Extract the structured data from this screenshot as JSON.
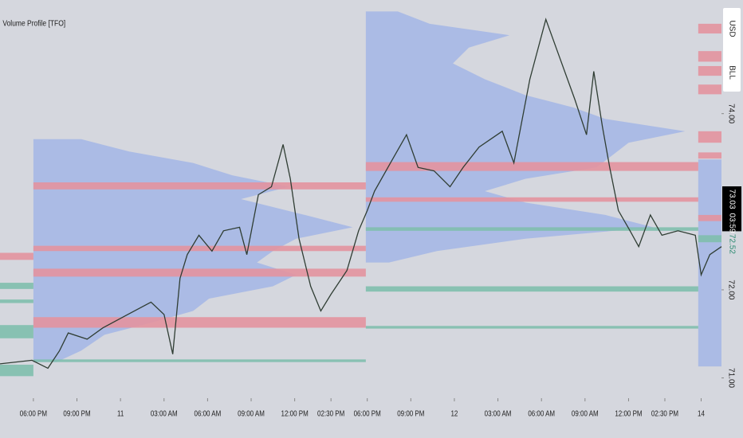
{
  "chart_data": {
    "type": "line",
    "title": "Volume Profile [TFO]",
    "x": [
      -2.3,
      -0.1,
      1.0,
      1.8,
      2.4,
      3.7,
      4.8,
      6.5,
      8.1,
      9.0,
      9.6,
      10.1,
      10.6,
      11.4,
      12.3,
      13.1,
      14.2,
      14.7,
      15.5,
      16.4,
      17.2,
      17.7,
      18.3,
      19.1,
      19.8,
      20.5,
      21.6,
      22.4,
      23.0,
      23.5,
      24.6,
      25.7,
      26.5,
      27.6,
      28.7,
      29.6,
      30.7,
      32.3,
      33.1,
      34.2,
      35.3,
      36.2,
      37.3,
      38.1,
      38.6,
      39.2,
      39.7,
      40.3,
      41.1,
      41.7,
      42.5,
      43.3,
      44.4,
      45.6,
      46.0,
      46.6,
      47.4
    ],
    "series": [
      {
        "color": "#2f3d33",
        "values": [
          71.16,
          71.2,
          71.11,
          71.31,
          71.51,
          71.44,
          71.57,
          71.72,
          71.86,
          71.72,
          71.27,
          72.13,
          72.4,
          72.62,
          72.44,
          72.67,
          72.71,
          72.4,
          73.08,
          73.17,
          73.65,
          73.26,
          72.58,
          72.04,
          71.76,
          71.95,
          72.22,
          72.67,
          72.9,
          73.12,
          73.44,
          73.76,
          73.39,
          73.35,
          73.17,
          73.39,
          73.62,
          73.8,
          73.44,
          74.39,
          75.07,
          74.66,
          74.16,
          73.76,
          74.48,
          73.85,
          73.39,
          72.9,
          72.67,
          72.49,
          72.85,
          72.62,
          72.67,
          72.62,
          72.17,
          72.4,
          72.49
        ]
      }
    ],
    "xlim": [
      -2.3,
      47.4
    ],
    "ylim": [
      70.77,
      75.29
    ],
    "xticks": [
      {
        "value": 0,
        "label": "06:00 PM"
      },
      {
        "value": 3,
        "label": "09:00 PM"
      },
      {
        "value": 6,
        "label": "11"
      },
      {
        "value": 9,
        "label": "03:00 AM"
      },
      {
        "value": 12,
        "label": "06:00 AM"
      },
      {
        "value": 15,
        "label": "09:00 AM"
      },
      {
        "value": 18,
        "label": "12:00 PM"
      },
      {
        "value": 20.5,
        "label": "02:30 PM"
      },
      {
        "value": 23,
        "label": "06:00 PM"
      },
      {
        "value": 26,
        "label": "09:00 PM"
      },
      {
        "value": 29,
        "label": "12"
      },
      {
        "value": 32,
        "label": "03:00 AM"
      },
      {
        "value": 35,
        "label": "06:00 AM"
      },
      {
        "value": 38,
        "label": "09:00 AM"
      },
      {
        "value": 41,
        "label": "12:00 PM"
      },
      {
        "value": 43.5,
        "label": "02:30 PM"
      },
      {
        "value": 46,
        "label": "14"
      }
    ],
    "yticks": [
      {
        "value": 74,
        "label": "74.00"
      },
      {
        "value": 72,
        "label": "72.00"
      },
      {
        "value": 71,
        "label": "71.00"
      }
    ],
    "profile_color": "#a3b6e6",
    "profiles": [
      {
        "x0": 0,
        "levels": [
          73.71,
          73.57,
          73.44,
          73.3,
          73.17,
          73.03,
          72.85,
          72.71,
          72.58,
          72.44,
          72.31,
          72.17,
          72.04,
          71.9,
          71.76,
          71.63,
          71.49,
          71.31,
          71.18
        ],
        "widths": [
          3.3,
          6.6,
          11,
          13.7,
          17.6,
          14.3,
          18.7,
          22,
          18.1,
          16.5,
          15.4,
          18.1,
          16.5,
          12.1,
          11,
          8.2,
          4.9,
          3.3,
          1.6
        ]
      },
      {
        "x0": 22.9,
        "levels": [
          75.16,
          75.02,
          74.89,
          74.75,
          74.57,
          74.39,
          74.21,
          74.07,
          73.94,
          73.8,
          73.67,
          73.53,
          73.39,
          73.26,
          73.12,
          72.99,
          72.85,
          72.71,
          72.58,
          72.44,
          72.31
        ],
        "widths": [
          2.2,
          4.4,
          9.9,
          7.1,
          6,
          8.2,
          11,
          14.3,
          16.5,
          22,
          18.1,
          17,
          15.9,
          11,
          8.2,
          11,
          16.5,
          19.8,
          11,
          4.9,
          1.6
        ]
      },
      {
        "x0": 45.8,
        "levels": [
          73.48,
          72.58,
          71.67,
          71.13
        ],
        "widths": [
          1.6,
          1.6,
          1.6,
          1.6
        ]
      }
    ],
    "zones": [
      {
        "x": [
          -2.3,
          0
        ],
        "y": [
          72.34,
          72.42
        ],
        "color": "#e3939e"
      },
      {
        "x": [
          0,
          22.9
        ],
        "y": [
          73.14,
          73.22
        ],
        "color": "#e3939e"
      },
      {
        "x": [
          0,
          22.9
        ],
        "y": [
          72.44,
          72.5
        ],
        "color": "#e3939e"
      },
      {
        "x": [
          0,
          22.9
        ],
        "y": [
          72.15,
          72.24
        ],
        "color": "#e3939e"
      },
      {
        "x": [
          0,
          22.9
        ],
        "y": [
          71.57,
          71.69
        ],
        "color": "#e3939e"
      },
      {
        "x": [
          0,
          22.9
        ],
        "y": [
          71.18,
          71.21
        ],
        "color": "#7fbfad"
      },
      {
        "x": [
          -2.3,
          0
        ],
        "y": [
          72.01,
          72.08
        ],
        "color": "#7fbfad"
      },
      {
        "x": [
          -2.3,
          0
        ],
        "y": [
          71.85,
          71.89
        ],
        "color": "#7fbfad"
      },
      {
        "x": [
          -2.3,
          0
        ],
        "y": [
          71.45,
          71.6
        ],
        "color": "#7fbfad"
      },
      {
        "x": [
          -2.3,
          0
        ],
        "y": [
          71.02,
          71.15
        ],
        "color": "#7fbfad"
      },
      {
        "x": [
          22.9,
          45.8
        ],
        "y": [
          73.35,
          73.45
        ],
        "color": "#e3939e"
      },
      {
        "x": [
          22.9,
          45.8
        ],
        "y": [
          73.0,
          73.05
        ],
        "color": "#e3939e"
      },
      {
        "x": [
          22.9,
          45.8
        ],
        "y": [
          72.67,
          72.71
        ],
        "color": "#7fbfad"
      },
      {
        "x": [
          22.9,
          45.8
        ],
        "y": [
          71.98,
          72.04
        ],
        "color": "#7fbfad"
      },
      {
        "x": [
          22.9,
          45.8
        ],
        "y": [
          71.56,
          71.59
        ],
        "color": "#7fbfad"
      },
      {
        "x": [
          45.8,
          47.4
        ],
        "y": [
          74.91,
          75.02
        ],
        "color": "#e3939e"
      },
      {
        "x": [
          45.8,
          47.4
        ],
        "y": [
          74.59,
          74.71
        ],
        "color": "#e3939e"
      },
      {
        "x": [
          45.8,
          47.4
        ],
        "y": [
          74.43,
          74.54
        ],
        "color": "#e3939e"
      },
      {
        "x": [
          45.8,
          47.4
        ],
        "y": [
          74.22,
          74.33
        ],
        "color": "#e3939e"
      },
      {
        "x": [
          45.8,
          47.4
        ],
        "y": [
          73.67,
          73.8
        ],
        "color": "#e3939e"
      },
      {
        "x": [
          45.8,
          47.4
        ],
        "y": [
          73.49,
          73.56
        ],
        "color": "#e3939e"
      },
      {
        "x": [
          45.8,
          47.4
        ],
        "y": [
          72.78,
          72.85
        ],
        "color": "#e3939e"
      },
      {
        "x": [
          45.8,
          47.4
        ],
        "y": [
          72.54,
          72.62
        ],
        "color": "#7fbfad"
      }
    ],
    "unit_labels": [
      "USD",
      "BLL"
    ],
    "price_labels": [
      {
        "value": 73.03,
        "background": "#000000",
        "color": "#ffffff"
      },
      {
        "value": 72.52,
        "background": "#d5d7de",
        "color": "#2a8a70"
      }
    ],
    "countdown": "03:59"
  }
}
